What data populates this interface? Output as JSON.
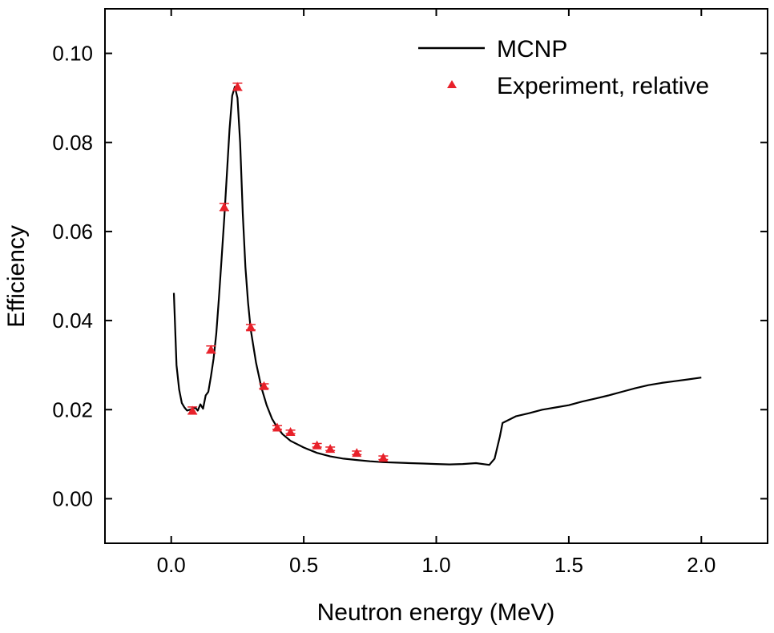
{
  "chart_data": {
    "type": "line",
    "title": "",
    "xlabel": "Neutron energy (MeV)",
    "ylabel": "Efficiency",
    "xlim": [
      -0.25,
      2.25
    ],
    "ylim": [
      -0.01,
      0.11
    ],
    "xticks": [
      0.0,
      0.5,
      1.0,
      1.5,
      2.0
    ],
    "xtick_labels": [
      "0.0",
      "0.5",
      "1.0",
      "1.5",
      "2.0"
    ],
    "yticks": [
      0.0,
      0.02,
      0.04,
      0.06,
      0.08,
      0.1
    ],
    "ytick_labels": [
      "0.00",
      "0.02",
      "0.04",
      "0.06",
      "0.08",
      "0.10"
    ],
    "grid": false,
    "legend_position": "top-right",
    "series": [
      {
        "name": "MCNP",
        "kind": "line",
        "color": "#000000",
        "x": [
          0.01,
          0.02,
          0.03,
          0.04,
          0.05,
          0.06,
          0.07,
          0.08,
          0.09,
          0.1,
          0.11,
          0.12,
          0.13,
          0.14,
          0.15,
          0.16,
          0.17,
          0.18,
          0.19,
          0.2,
          0.21,
          0.22,
          0.23,
          0.24,
          0.25,
          0.26,
          0.27,
          0.28,
          0.29,
          0.3,
          0.32,
          0.34,
          0.36,
          0.38,
          0.4,
          0.42,
          0.45,
          0.5,
          0.55,
          0.6,
          0.65,
          0.7,
          0.75,
          0.8,
          0.85,
          0.9,
          0.95,
          1.0,
          1.05,
          1.1,
          1.15,
          1.2,
          1.22,
          1.24,
          1.25,
          1.3,
          1.35,
          1.4,
          1.45,
          1.5,
          1.55,
          1.6,
          1.65,
          1.7,
          1.75,
          1.8,
          1.85,
          1.9,
          1.95,
          2.0
        ],
        "y": [
          0.0462,
          0.03,
          0.0245,
          0.0215,
          0.0205,
          0.0198,
          0.02,
          0.0202,
          0.0205,
          0.0198,
          0.0212,
          0.0202,
          0.0232,
          0.024,
          0.0275,
          0.0315,
          0.037,
          0.045,
          0.054,
          0.063,
          0.073,
          0.083,
          0.0905,
          0.0925,
          0.09,
          0.08,
          0.064,
          0.052,
          0.044,
          0.038,
          0.0305,
          0.025,
          0.021,
          0.018,
          0.016,
          0.0145,
          0.013,
          0.0115,
          0.0103,
          0.0095,
          0.009,
          0.0087,
          0.0084,
          0.0082,
          0.0081,
          0.008,
          0.0079,
          0.0078,
          0.0077,
          0.0078,
          0.008,
          0.0076,
          0.009,
          0.014,
          0.017,
          0.0185,
          0.0192,
          0.02,
          0.0205,
          0.021,
          0.0218,
          0.0225,
          0.0232,
          0.024,
          0.0248,
          0.0255,
          0.026,
          0.0264,
          0.0268,
          0.0272
        ]
      },
      {
        "name": "Experiment, relative",
        "kind": "scatter",
        "marker": "triangle",
        "color": "#e8212a",
        "x": [
          0.08,
          0.15,
          0.2,
          0.25,
          0.3,
          0.35,
          0.4,
          0.45,
          0.55,
          0.6,
          0.7,
          0.8
        ],
        "y": [
          0.0198,
          0.0335,
          0.0655,
          0.0925,
          0.0385,
          0.0253,
          0.016,
          0.015,
          0.012,
          0.0112,
          0.0103,
          0.0092
        ],
        "yerr": [
          0.0008,
          0.0008,
          0.0008,
          0.0008,
          0.0006,
          0.0005,
          0.0004,
          0.0004,
          0.0004,
          0.0004,
          0.0004,
          0.0004
        ]
      }
    ]
  }
}
